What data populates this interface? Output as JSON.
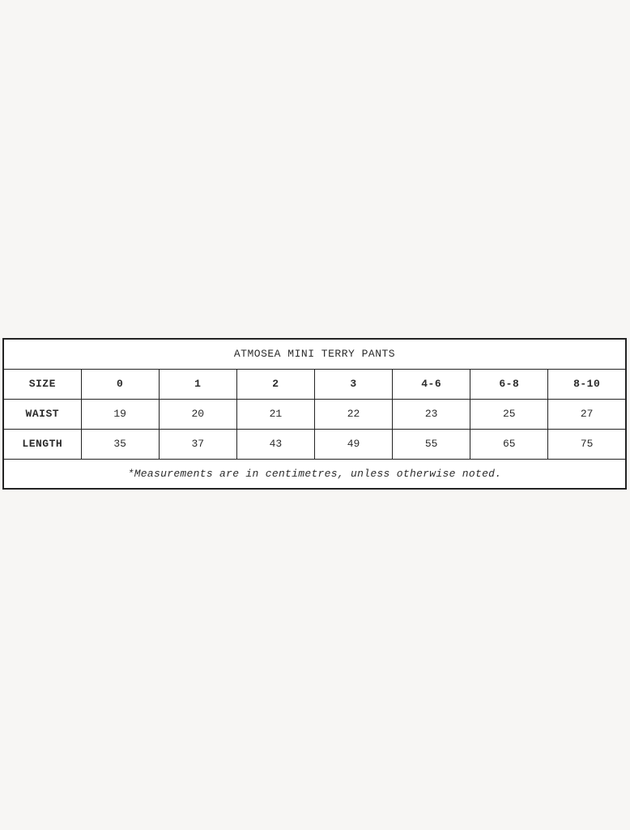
{
  "page": {
    "background_color": "#f7f6f4",
    "table_border_color": "#232323"
  },
  "size_chart": {
    "title": "ATMOSEA MINI TERRY PANTS",
    "columns": [
      "SIZE",
      "0",
      "1",
      "2",
      "3",
      "4-6",
      "6-8",
      "8-10"
    ],
    "rows": [
      {
        "label": "WAIST",
        "values": [
          "19",
          "20",
          "21",
          "22",
          "23",
          "25",
          "27"
        ]
      },
      {
        "label": "LENGTH",
        "values": [
          "35",
          "37",
          "43",
          "49",
          "55",
          "65",
          "75"
        ]
      }
    ],
    "footnote": "*Measurements are in centimetres, unless otherwise noted."
  },
  "chart_data": {
    "type": "table",
    "title": "ATMOSEA MINI TERRY PANTS",
    "categories": [
      "0",
      "1",
      "2",
      "3",
      "4-6",
      "6-8",
      "8-10"
    ],
    "series": [
      {
        "name": "WAIST",
        "values": [
          19,
          20,
          21,
          22,
          23,
          25,
          27
        ]
      },
      {
        "name": "LENGTH",
        "values": [
          35,
          37,
          43,
          49,
          55,
          65,
          75
        ]
      }
    ],
    "footnote": "*Measurements are in centimetres, unless otherwise noted."
  }
}
